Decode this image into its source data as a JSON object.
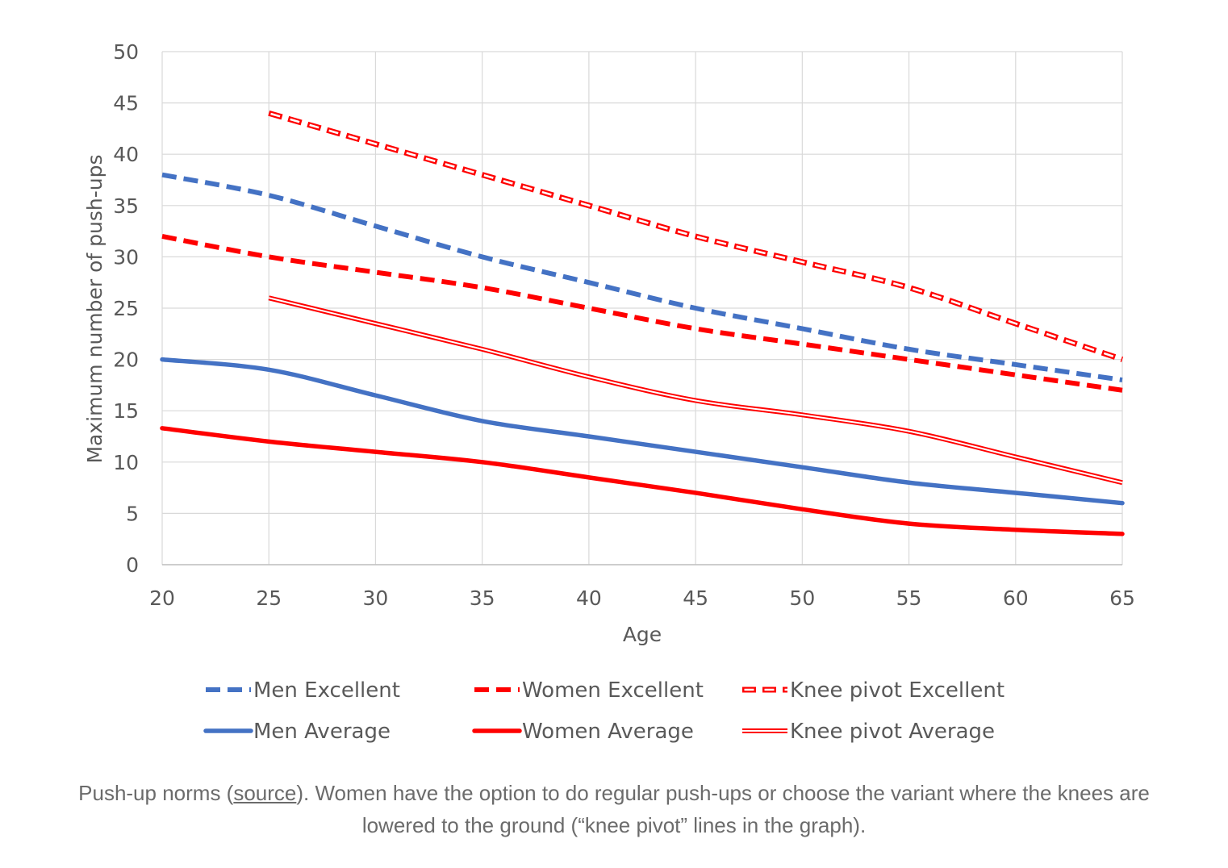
{
  "chart_data": {
    "type": "line",
    "title": "",
    "xlabel": "Age",
    "ylabel": "Maximum number of push-ups",
    "xlim": [
      20,
      65
    ],
    "ylim": [
      0,
      50
    ],
    "x_ticks": [
      20,
      25,
      30,
      35,
      40,
      45,
      50,
      55,
      60,
      65
    ],
    "y_ticks": [
      0,
      5,
      10,
      15,
      20,
      25,
      30,
      35,
      40,
      45,
      50
    ],
    "grid": true,
    "legend_position": "bottom",
    "series": [
      {
        "name": "Men Excellent",
        "style": "dashed",
        "color": "#4472C4",
        "points": [
          [
            20,
            38
          ],
          [
            25,
            36
          ],
          [
            30,
            33
          ],
          [
            35,
            30
          ],
          [
            40,
            27.5
          ],
          [
            45,
            25
          ],
          [
            50,
            23
          ],
          [
            55,
            21
          ],
          [
            60,
            19.5
          ],
          [
            65,
            18
          ]
        ]
      },
      {
        "name": "Women Excellent",
        "style": "dashed",
        "color": "#FF0000",
        "points": [
          [
            20,
            32
          ],
          [
            25,
            30
          ],
          [
            30,
            28.5
          ],
          [
            35,
            27
          ],
          [
            40,
            25
          ],
          [
            45,
            23
          ],
          [
            50,
            21.5
          ],
          [
            55,
            20
          ],
          [
            60,
            18.5
          ],
          [
            65,
            17
          ]
        ]
      },
      {
        "name": "Knee pivot Excellent",
        "style": "double-dashed",
        "color": "#FF0000",
        "points": [
          [
            25,
            44
          ],
          [
            30,
            41
          ],
          [
            35,
            38
          ],
          [
            40,
            35
          ],
          [
            45,
            32
          ],
          [
            50,
            29.5
          ],
          [
            55,
            27
          ],
          [
            60,
            23.5
          ],
          [
            65,
            20
          ]
        ]
      },
      {
        "name": "Men Average",
        "style": "solid",
        "color": "#4472C4",
        "points": [
          [
            20,
            20
          ],
          [
            25,
            19
          ],
          [
            30,
            16.5
          ],
          [
            35,
            14
          ],
          [
            40,
            12.5
          ],
          [
            45,
            11
          ],
          [
            50,
            9.5
          ],
          [
            55,
            8
          ],
          [
            60,
            7
          ],
          [
            65,
            6
          ]
        ]
      },
      {
        "name": "Women Average",
        "style": "solid",
        "color": "#FF0000",
        "points": [
          [
            20,
            13.3
          ],
          [
            25,
            12
          ],
          [
            30,
            11
          ],
          [
            35,
            10
          ],
          [
            40,
            8.5
          ],
          [
            45,
            7
          ],
          [
            50,
            5.4
          ],
          [
            55,
            4
          ],
          [
            60,
            3.4
          ],
          [
            65,
            3
          ]
        ]
      },
      {
        "name": "Knee pivot Average",
        "style": "double",
        "color": "#FF0000",
        "points": [
          [
            25,
            26
          ],
          [
            30,
            23.5
          ],
          [
            35,
            21
          ],
          [
            40,
            18.3
          ],
          [
            45,
            16
          ],
          [
            50,
            14.6
          ],
          [
            55,
            13
          ],
          [
            60,
            10.5
          ],
          [
            65,
            8
          ]
        ]
      }
    ]
  },
  "caption": {
    "before": "Push-up norms (",
    "link_text": "source",
    "after": "). Women have the option to do regular push-ups or choose the variant where the knees are lowered to the ground (“knee pivot” lines in the graph)."
  }
}
